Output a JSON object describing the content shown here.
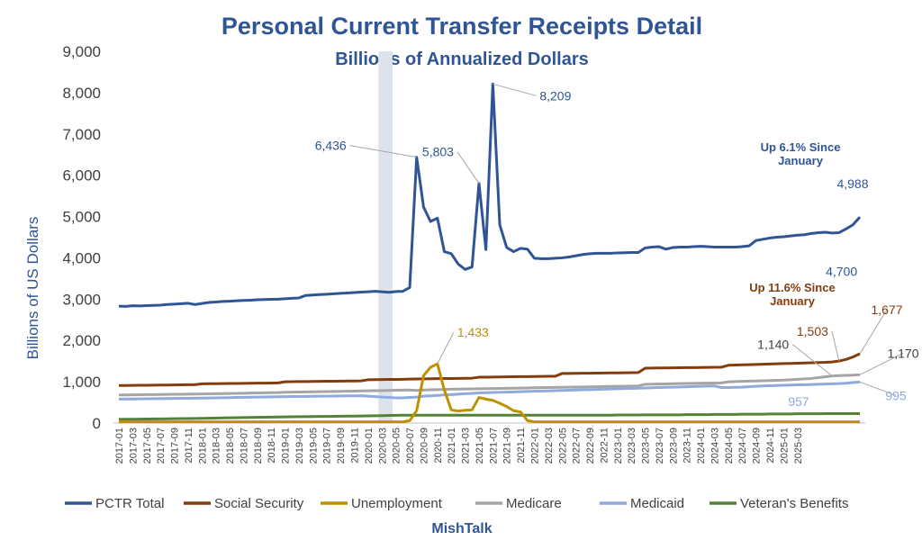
{
  "chart_data": {
    "type": "line",
    "title": "Personal Current Transfer Receipts Detail",
    "subtitle": "Billions of Annualized Dollars",
    "ylabel": "Billions of US Dollars",
    "xlabel": "",
    "ylim": [
      0,
      9000
    ],
    "yticks": [
      0,
      1000,
      2000,
      3000,
      4000,
      5000,
      6000,
      7000,
      8000,
      9000
    ],
    "ytick_labels": [
      "0",
      "1,000",
      "2,000",
      "3,000",
      "4,000",
      "5,000",
      "6,000",
      "7,000",
      "8,000",
      "9,000"
    ],
    "x_start": "2017-01",
    "x_tick_labels": [
      "2017-01",
      "2017-03",
      "2017-05",
      "2017-07",
      "2017-09",
      "2017-11",
      "2018-01",
      "2018-03",
      "2018-05",
      "2018-07",
      "2018-09",
      "2018-11",
      "2019-01",
      "2019-03",
      "2019-05",
      "2019-07",
      "2019-09",
      "2019-11",
      "2020-01",
      "2020-03",
      "2020-05",
      "2020-07",
      "2020-09",
      "2020-11",
      "2021-01",
      "2021-03",
      "2021-05",
      "2021-07",
      "2021-09",
      "2021-11",
      "2022-01",
      "2022-03",
      "2022-05",
      "2022-07",
      "2022-09",
      "2022-11",
      "2023-01",
      "2023-03",
      "2023-05",
      "2023-07",
      "2023-09",
      "2023-11",
      "2024-01",
      "2024-03",
      "2024-05",
      "2024-07",
      "2024-09",
      "2024-11",
      "2025-01",
      "2025-03"
    ],
    "recession_shading": [
      "2020-03",
      "2020-04"
    ],
    "grid": false,
    "legend": "bottom",
    "series": [
      {
        "name": "PCTR Total",
        "color": "#2f5597",
        "values": [
          2830,
          2825,
          2840,
          2835,
          2845,
          2850,
          2855,
          2870,
          2880,
          2890,
          2900,
          2870,
          2895,
          2920,
          2930,
          2945,
          2950,
          2960,
          2970,
          2975,
          2985,
          2990,
          2995,
          3000,
          3010,
          3020,
          3030,
          3090,
          3100,
          3110,
          3120,
          3130,
          3140,
          3150,
          3160,
          3170,
          3180,
          3190,
          3180,
          3165,
          3185,
          3190,
          3280,
          6436,
          5230,
          4880,
          4960,
          4150,
          4100,
          3850,
          3720,
          3780,
          5803,
          4200,
          8209,
          4800,
          4250,
          4150,
          4230,
          4210,
          3990,
          3980,
          3980,
          3990,
          4000,
          4020,
          4050,
          4080,
          4100,
          4110,
          4110,
          4110,
          4120,
          4125,
          4130,
          4130,
          4240,
          4260,
          4270,
          4210,
          4250,
          4260,
          4260,
          4270,
          4280,
          4270,
          4260,
          4260,
          4260,
          4260,
          4270,
          4290,
          4420,
          4450,
          4480,
          4500,
          4510,
          4530,
          4550,
          4560,
          4590,
          4610,
          4620,
          4600,
          4610,
          4700,
          4800,
          4988
        ]
      },
      {
        "name": "Social Security",
        "color": "#843c0c",
        "values": [
          910,
          910,
          912,
          914,
          916,
          918,
          920,
          922,
          924,
          926,
          928,
          930,
          950,
          952,
          954,
          956,
          958,
          960,
          962,
          964,
          966,
          968,
          970,
          972,
          1000,
          1002,
          1004,
          1006,
          1008,
          1010,
          1012,
          1014,
          1016,
          1018,
          1020,
          1022,
          1050,
          1052,
          1054,
          1056,
          1058,
          1060,
          1065,
          1068,
          1070,
          1072,
          1075,
          1078,
          1080,
          1082,
          1085,
          1088,
          1110,
          1112,
          1115,
          1118,
          1120,
          1122,
          1124,
          1126,
          1128,
          1130,
          1132,
          1134,
          1200,
          1202,
          1204,
          1206,
          1208,
          1210,
          1212,
          1214,
          1216,
          1218,
          1220,
          1222,
          1330,
          1332,
          1334,
          1336,
          1338,
          1340,
          1342,
          1344,
          1346,
          1348,
          1350,
          1352,
          1400,
          1405,
          1410,
          1415,
          1420,
          1425,
          1430,
          1435,
          1440,
          1445,
          1450,
          1455,
          1460,
          1465,
          1470,
          1480,
          1503,
          1540,
          1600,
          1677
        ]
      },
      {
        "name": "Unemployment",
        "color": "#bf9000",
        "values": [
          30,
          30,
          30,
          30,
          30,
          30,
          30,
          30,
          30,
          30,
          30,
          30,
          30,
          30,
          30,
          30,
          30,
          30,
          30,
          30,
          30,
          30,
          30,
          30,
          30,
          30,
          30,
          30,
          30,
          30,
          30,
          30,
          30,
          30,
          30,
          30,
          30,
          30,
          30,
          30,
          30,
          30,
          60,
          300,
          1150,
          1350,
          1433,
          800,
          320,
          290,
          310,
          320,
          620,
          580,
          550,
          480,
          400,
          300,
          270,
          60,
          30,
          30,
          30,
          30,
          30,
          30,
          30,
          30,
          30,
          30,
          30,
          30,
          30,
          30,
          30,
          30,
          30,
          30,
          30,
          30,
          30,
          30,
          30,
          30,
          30,
          30,
          30,
          30,
          30,
          30,
          30,
          30,
          30,
          30,
          30,
          30,
          30,
          30,
          30,
          30,
          30,
          30,
          30,
          30,
          30,
          30,
          30,
          30
        ]
      },
      {
        "name": "Medicare",
        "color": "#a5a5a5",
        "values": [
          680,
          682,
          684,
          686,
          688,
          690,
          692,
          694,
          696,
          698,
          700,
          702,
          705,
          708,
          711,
          714,
          717,
          720,
          723,
          726,
          729,
          732,
          735,
          738,
          745,
          748,
          751,
          754,
          757,
          760,
          763,
          766,
          769,
          772,
          775,
          778,
          782,
          785,
          788,
          791,
          794,
          797,
          800,
          790,
          800,
          805,
          810,
          815,
          820,
          823,
          826,
          829,
          830,
          833,
          836,
          839,
          842,
          845,
          848,
          851,
          854,
          857,
          860,
          863,
          866,
          869,
          872,
          875,
          878,
          881,
          884,
          887,
          890,
          893,
          896,
          899,
          940,
          943,
          946,
          949,
          952,
          955,
          958,
          961,
          964,
          967,
          970,
          973,
          1000,
          1005,
          1010,
          1015,
          1020,
          1025,
          1030,
          1035,
          1040,
          1050,
          1060,
          1070,
          1080,
          1100,
          1120,
          1140,
          1150,
          1155,
          1160,
          1170
        ]
      },
      {
        "name": "Medicaid",
        "color": "#8faadc",
        "values": [
          580,
          582,
          584,
          586,
          588,
          590,
          592,
          594,
          596,
          598,
          600,
          602,
          605,
          608,
          611,
          614,
          617,
          620,
          623,
          626,
          629,
          632,
          635,
          638,
          640,
          642,
          644,
          646,
          648,
          650,
          652,
          654,
          656,
          658,
          660,
          662,
          650,
          640,
          630,
          620,
          610,
          610,
          620,
          630,
          650,
          660,
          670,
          680,
          690,
          700,
          710,
          720,
          730,
          735,
          740,
          745,
          750,
          755,
          760,
          765,
          770,
          775,
          780,
          785,
          790,
          795,
          800,
          805,
          810,
          815,
          820,
          825,
          830,
          835,
          840,
          845,
          850,
          855,
          860,
          865,
          870,
          875,
          880,
          885,
          890,
          895,
          900,
          860,
          860,
          865,
          870,
          880,
          890,
          900,
          905,
          910,
          915,
          920,
          925,
          930,
          935,
          940,
          945,
          950,
          957,
          965,
          980,
          995
        ]
      },
      {
        "name": "Veteran's Benefits",
        "color": "#548235",
        "values": [
          90,
          92,
          94,
          96,
          98,
          100,
          102,
          104,
          106,
          108,
          110,
          112,
          115,
          118,
          121,
          124,
          127,
          130,
          133,
          136,
          139,
          142,
          145,
          148,
          150,
          152,
          154,
          156,
          158,
          160,
          162,
          164,
          166,
          168,
          170,
          172,
          175,
          178,
          181,
          184,
          187,
          190,
          190,
          190,
          190,
          190,
          190,
          190,
          190,
          190,
          190,
          190,
          190,
          190,
          190,
          190,
          190,
          190,
          190,
          190,
          190,
          190,
          190,
          190,
          190,
          190,
          190,
          190,
          190,
          190,
          190,
          190,
          195,
          195,
          195,
          195,
          200,
          200,
          200,
          200,
          200,
          200,
          205,
          205,
          205,
          205,
          210,
          210,
          210,
          210,
          215,
          215,
          215,
          215,
          220,
          220,
          220,
          220,
          225,
          225,
          225,
          225,
          230,
          230,
          230,
          230,
          230,
          230
        ]
      }
    ],
    "annotations": [
      {
        "text": "6,436",
        "series": 0,
        "index": 43,
        "color": "#2f5597"
      },
      {
        "text": "5,803",
        "series": 0,
        "index": 52,
        "color": "#2f5597"
      },
      {
        "text": "8,209",
        "series": 0,
        "index": 54,
        "color": "#2f5597"
      },
      {
        "text": "4,988",
        "series": 0,
        "index": 107,
        "color": "#2f5597"
      },
      {
        "text": "4,700",
        "series": 0,
        "index": 105,
        "color": "#2f5597"
      },
      {
        "text": "1,433",
        "series": 2,
        "index": 46,
        "color": "#bf9000"
      },
      {
        "text": "1,677",
        "series": 1,
        "index": 107,
        "color": "#843c0c"
      },
      {
        "text": "1,503",
        "series": 1,
        "index": 104,
        "color": "#843c0c"
      },
      {
        "text": "1,140",
        "series": 3,
        "index": 103,
        "color": "#404040"
      },
      {
        "text": "1,170",
        "series": 3,
        "index": 107,
        "color": "#404040"
      },
      {
        "text": "957",
        "series": 4,
        "index": 104,
        "color": "#8faadc"
      },
      {
        "text": "995",
        "series": 4,
        "index": 107,
        "color": "#8faadc"
      }
    ],
    "notes": [
      {
        "lines": [
          "Up 6.1% Since",
          "January"
        ],
        "color": "#2f5597"
      },
      {
        "lines": [
          "Up 11.6% Since",
          "January"
        ],
        "color": "#843c0c"
      }
    ],
    "source": "MishTalk"
  }
}
